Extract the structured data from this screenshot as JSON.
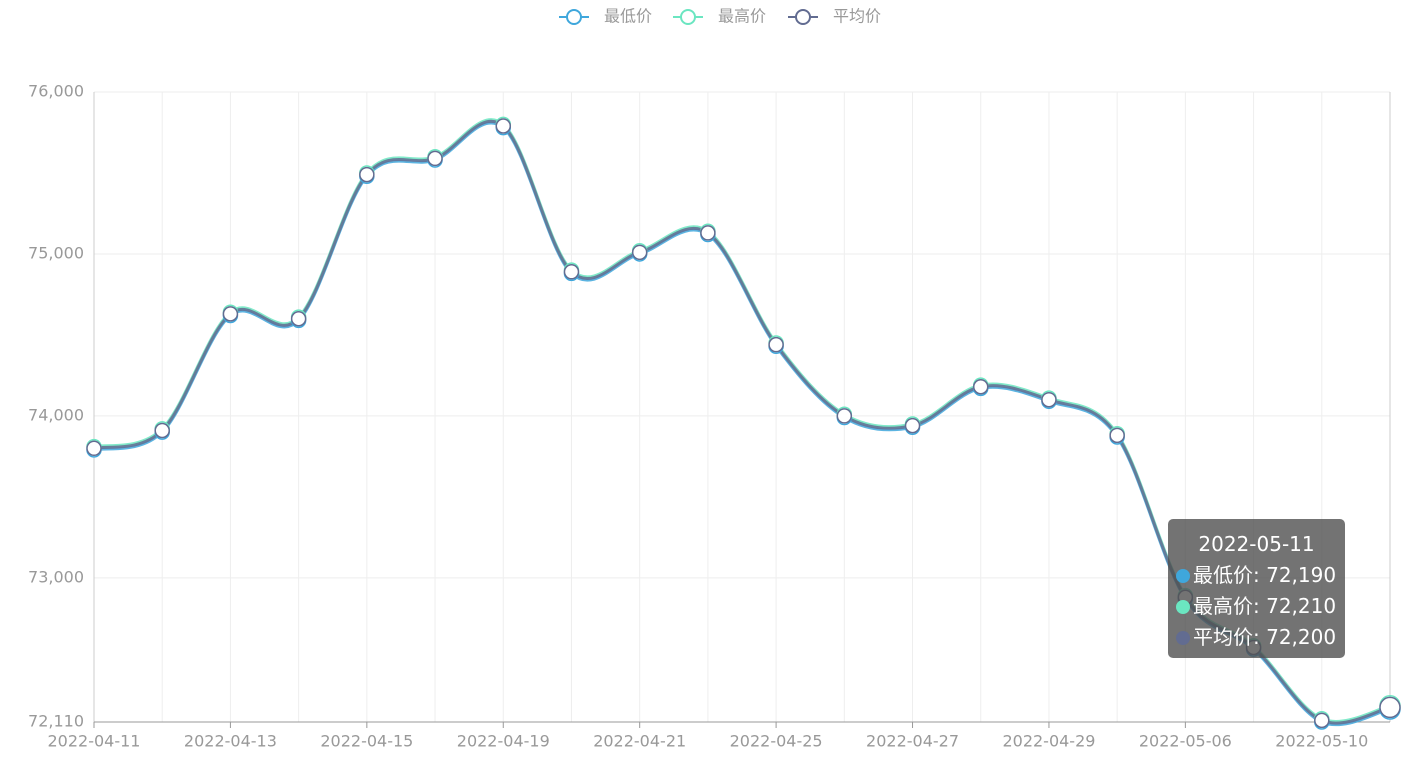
{
  "chart_data": {
    "type": "line",
    "categories": [
      "2022-04-11",
      null,
      "2022-04-13",
      null,
      "2022-04-15",
      null,
      "2022-04-19",
      null,
      "2022-04-21",
      null,
      "2022-04-25",
      null,
      "2022-04-27",
      null,
      "2022-04-29",
      null,
      "2022-05-06",
      null,
      "2022-05-10",
      "2022-05-11"
    ],
    "series": [
      {
        "name": "最低价",
        "color": "#3fa7dc",
        "values": [
          73790,
          73900,
          74620,
          74590,
          75480,
          75580,
          75780,
          74880,
          75000,
          75120,
          74430,
          73990,
          73930,
          74170,
          74090,
          73870,
          72870,
          72560,
          72110,
          72190
        ]
      },
      {
        "name": "最高价",
        "color": "#6be6c1",
        "values": [
          73810,
          73920,
          74640,
          74610,
          75500,
          75600,
          75800,
          74900,
          75020,
          75140,
          74450,
          74010,
          73950,
          74190,
          74110,
          73890,
          72890,
          72580,
          72130,
          72210
        ]
      },
      {
        "name": "平均价",
        "color": "#626c91",
        "values": [
          73800,
          73910,
          74630,
          74600,
          75490,
          75590,
          75790,
          74890,
          75010,
          75130,
          74440,
          74000,
          73940,
          74180,
          74100,
          73880,
          72880,
          72570,
          72120,
          72200
        ]
      }
    ],
    "ylim": [
      72110,
      76000
    ],
    "yticks": [
      {
        "value": 72110,
        "label": "72,110"
      },
      {
        "value": 73000,
        "label": "73,000"
      },
      {
        "value": 74000,
        "label": "74,000"
      },
      {
        "value": 75000,
        "label": "75,000"
      },
      {
        "value": 76000,
        "label": "76,000"
      }
    ],
    "grid": true,
    "smooth": true,
    "tooltip_labels": [
      "72,190",
      "72,210",
      "72,200"
    ]
  }
}
